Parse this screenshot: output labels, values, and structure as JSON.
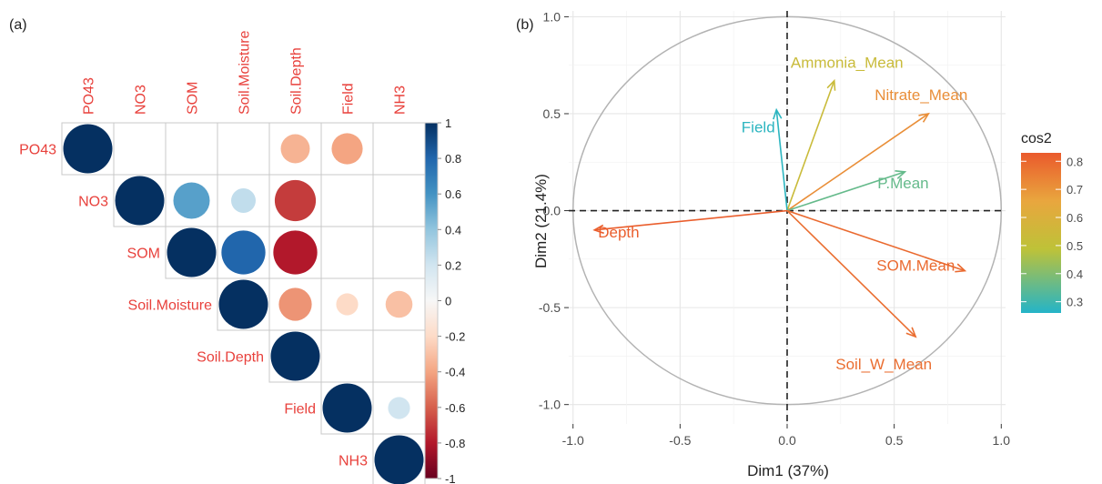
{
  "panels": {
    "a": "(a)",
    "b": "(b)"
  },
  "chart_data": [
    {
      "type": "heatmap",
      "variables": [
        "PO43",
        "NO3",
        "SOM",
        "Soil.Moisture",
        "Soil.Depth",
        "Field",
        "NH3"
      ],
      "matrix": [
        [
          1.0,
          null,
          null,
          null,
          -0.35,
          -0.4,
          null
        ],
        [
          null,
          1.0,
          0.55,
          0.25,
          -0.7,
          null,
          null
        ],
        [
          null,
          null,
          1.0,
          0.8,
          -0.8,
          null,
          null
        ],
        [
          null,
          null,
          null,
          1.0,
          -0.45,
          -0.2,
          -0.3
        ],
        [
          null,
          null,
          null,
          null,
          1.0,
          null,
          null
        ],
        [
          null,
          null,
          null,
          null,
          null,
          1.0,
          0.2
        ],
        [
          null,
          null,
          null,
          null,
          null,
          null,
          1.0
        ]
      ],
      "colorbar": {
        "range": [
          -1,
          1
        ],
        "ticks": [
          "1",
          "0.8",
          "0.6",
          "0.4",
          "0.2",
          "0",
          "-0.2",
          "-0.4",
          "-0.6",
          "-0.8",
          "-1"
        ]
      },
      "colors": {
        "positive": "#053061",
        "neutral": "#f7f7f7",
        "negative": "#67001f",
        "label": "#e8413c"
      }
    },
    {
      "type": "scatter",
      "subtype": "pca-variable-biplot",
      "xlabel": "Dim1 (37%)",
      "ylabel": "Dim2 (21.4%)",
      "xlim": [
        -1.02,
        1.02
      ],
      "ylim": [
        -1.1,
        1.03
      ],
      "xticks": [
        "-1.0",
        "-0.5",
        "0.0",
        "0.5",
        "1.0"
      ],
      "yticks": [
        "1.0",
        "0.5",
        "0.0",
        "-0.5",
        "-1.0"
      ],
      "grid": true,
      "unit_circle": true,
      "arrows": [
        {
          "name": "Ammonia_Mean",
          "x": 0.22,
          "y": 0.67,
          "cos2": 0.5
        },
        {
          "name": "Nitrate_Mean",
          "x": 0.66,
          "y": 0.5,
          "cos2": 0.7
        },
        {
          "name": "Field",
          "x": -0.05,
          "y": 0.52,
          "cos2": 0.27
        },
        {
          "name": "P.Mean",
          "x": 0.55,
          "y": 0.2,
          "cos2": 0.34
        },
        {
          "name": "Depth",
          "x": -0.9,
          "y": -0.1,
          "cos2": 0.82
        },
        {
          "name": "SOM.Mean",
          "x": 0.83,
          "y": -0.31,
          "cos2": 0.79
        },
        {
          "name": "Soil_W_Mean",
          "x": 0.6,
          "y": -0.65,
          "cos2": 0.78
        }
      ],
      "legend": {
        "title": "cos2",
        "range": [
          0.26,
          0.83
        ],
        "ticks": [
          "0.8",
          "0.7",
          "0.6",
          "0.5",
          "0.4",
          "0.3"
        ],
        "placement": "right",
        "colors": [
          "#24b4c8",
          "#bec238",
          "#e9a63e",
          "#ea5a2c"
        ]
      }
    }
  ]
}
